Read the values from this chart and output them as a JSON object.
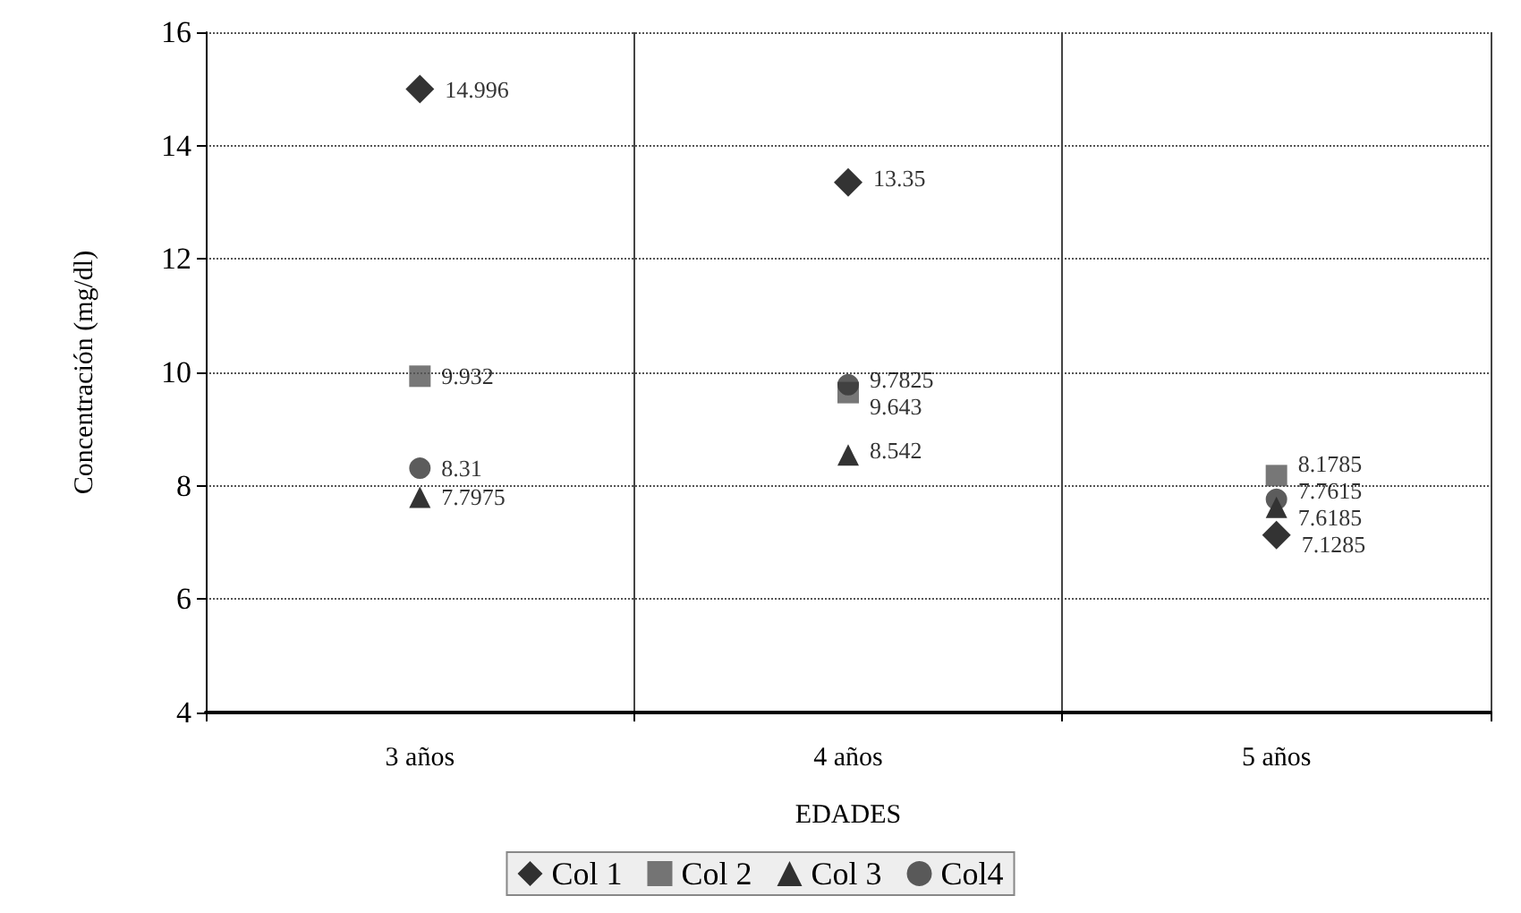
{
  "chart_data": {
    "type": "scatter",
    "xlabel": "EDADES",
    "ylabel": "Concentración (mg/dl)",
    "categories": [
      "3 años",
      "4 años",
      "5 años"
    ],
    "ylim": [
      4,
      16
    ],
    "yticks": [
      4,
      6,
      8,
      10,
      12,
      14,
      16
    ],
    "grid": true,
    "legend": "bottom",
    "data_labels": true,
    "series": [
      {
        "name": "Col 1",
        "color": "#000000",
        "marker": "diamond",
        "values": [
          14.996,
          13.35,
          7.1285
        ]
      },
      {
        "name": "Col 2",
        "color": "#555555",
        "marker": "square",
        "values": [
          9.932,
          9.643,
          8.1785
        ]
      },
      {
        "name": "Col 3",
        "color": "#000000",
        "marker": "triangle",
        "values": [
          7.7975,
          8.542,
          7.6185
        ]
      },
      {
        "name": "Col4",
        "color": "#333333",
        "marker": "circle",
        "values": [
          8.31,
          9.7825,
          7.7615
        ]
      }
    ]
  }
}
